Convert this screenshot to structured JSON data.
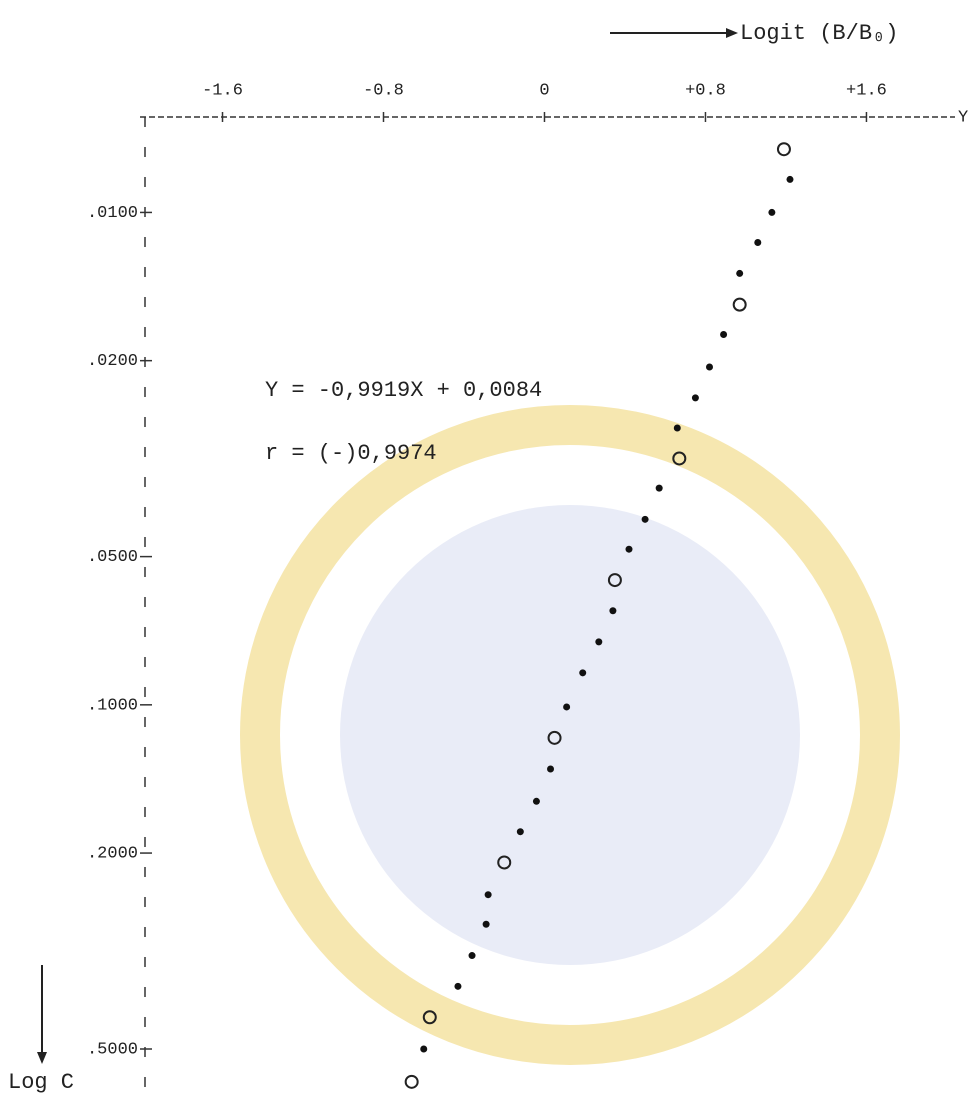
{
  "chart_data": {
    "type": "scatter",
    "x_label": "Logit (B/B₀)",
    "y_label": "Log C",
    "axis_end_label": "Y",
    "annotations": [
      "Y = -0,9919X + 0,0084",
      "r = (-)0,9974"
    ],
    "xlim": [
      -2.01,
      2.04
    ],
    "xticks": [
      -1.6,
      -0.8,
      0,
      {
        "value": 0.8,
        "label": "+0.8"
      },
      {
        "value": 1.6,
        "label": "+1.6"
      }
    ],
    "ylim": [
      0.0064,
      0.62
    ],
    "y_log": true,
    "y_inverted": true,
    "yticks": [
      {
        "value": 0.01,
        "label": ".0100"
      },
      {
        "value": 0.02,
        "label": ".0200"
      },
      {
        "value": 0.05,
        "label": ".0500"
      },
      {
        "value": 0.1,
        "label": ".1000"
      },
      {
        "value": 0.2,
        "label": ".2000"
      },
      {
        "value": 0.5,
        "label": ".5000"
      }
    ],
    "series": [
      {
        "marker": "dot",
        "color": "#111111",
        "x": [
          1.22,
          1.13,
          1.06,
          0.97,
          0.89,
          0.82,
          0.75,
          0.66,
          0.57,
          0.5,
          0.42,
          0.34,
          0.27,
          0.19,
          0.11,
          0.03,
          -0.04,
          -0.12,
          -0.28,
          -0.29,
          -0.36,
          -0.43,
          -0.6
        ],
        "values": [
          0.00857,
          0.01,
          0.01151,
          0.0133,
          0.0177,
          0.0206,
          0.0238,
          0.0274,
          0.0363,
          0.042,
          0.0483,
          0.0644,
          0.0745,
          0.0861,
          0.101,
          0.135,
          0.157,
          0.181,
          0.243,
          0.279,
          0.323,
          0.373,
          0.5
        ]
      },
      {
        "marker": "ring",
        "color": "#222222",
        "x": [
          1.19,
          0.97,
          0.67,
          0.35,
          0.05,
          -0.2,
          -0.57,
          -0.66
        ],
        "values": [
          0.00744,
          0.01539,
          0.0316,
          0.0558,
          0.1167,
          0.209,
          0.431,
          0.583
        ]
      }
    ]
  }
}
